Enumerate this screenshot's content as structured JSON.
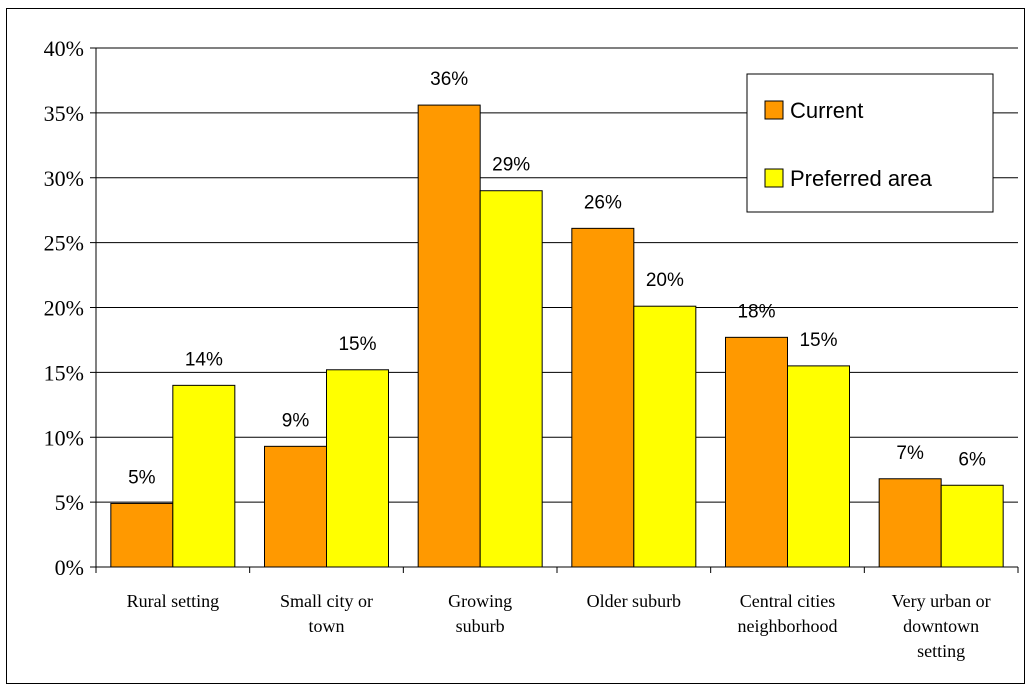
{
  "chart_data": {
    "type": "bar",
    "categories": [
      [
        "Rural setting"
      ],
      [
        "Small city or",
        "town"
      ],
      [
        "Growing",
        "suburb"
      ],
      [
        "Older suburb"
      ],
      [
        "Central cities",
        "neighborhood"
      ],
      [
        "Very urban or",
        "downtown",
        "setting"
      ]
    ],
    "series": [
      {
        "name": "Current",
        "color": "#FF9900",
        "values": [
          0.049,
          0.093,
          0.356,
          0.261,
          0.177,
          0.068
        ],
        "labels": [
          "5%",
          "9%",
          "36%",
          "26%",
          "18%",
          "7%"
        ]
      },
      {
        "name": "Preferred area",
        "color": "#FFFF00",
        "values": [
          0.14,
          0.152,
          0.29,
          0.201,
          0.155,
          0.063
        ],
        "labels": [
          "14%",
          "15%",
          "29%",
          "20%",
          "15%",
          "6%"
        ]
      }
    ],
    "ylim": [
      0,
      0.4
    ],
    "yticks": [
      "0%",
      "5%",
      "10%",
      "15%",
      "20%",
      "25%",
      "30%",
      "35%",
      "40%"
    ],
    "grid": true,
    "legend": "top-right",
    "title": "",
    "xlabel": "",
    "ylabel": ""
  }
}
